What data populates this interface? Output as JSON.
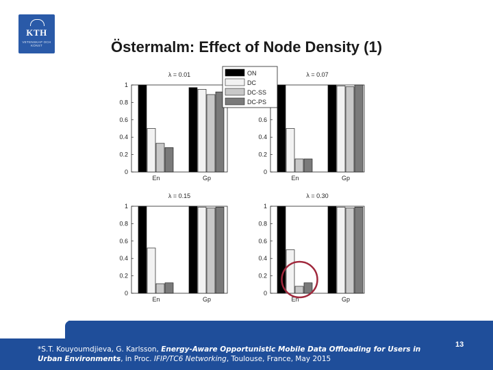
{
  "slide": {
    "title": "Östermalm: Effect of Node Density (1)",
    "logo": {
      "text": "KTH",
      "subtext": "VETENSKAP OCH KONST"
    },
    "page_number": "13",
    "citation": {
      "authors": "*S.T. Kouyoumdjieva, G. Karlsson, ",
      "paper_title": "Energy-Aware Opportunistic Mobile Data Offloading for Users in Urban Environments",
      "venue_prefix": ", in Proc. ",
      "venue": "IFIP/TC6 Networking",
      "venue_suffix": ", Toulouse, France, May 2015"
    },
    "colors": {
      "footer": "#1f4e9a",
      "highlight_circle": "#a0283c"
    }
  },
  "chart_data": {
    "type": "bar",
    "legend": {
      "placement": "top-center",
      "entries": [
        {
          "name": "ON",
          "color": "#000000"
        },
        {
          "name": "DC",
          "color": "#f2f2f2"
        },
        {
          "name": "DC-SS",
          "color": "#c8c8c8"
        },
        {
          "name": "DC-PS",
          "color": "#7a7a7a"
        }
      ]
    },
    "yticks": [
      "0",
      "0.2",
      "0.4",
      "0.6",
      "0.8",
      "1"
    ],
    "ylim": [
      0,
      1
    ],
    "categories": [
      "En",
      "Gp"
    ],
    "panels": [
      {
        "title": "λ = 0.01",
        "series": [
          {
            "name": "ON",
            "values": [
              1.0,
              0.97
            ]
          },
          {
            "name": "DC",
            "values": [
              0.5,
              0.95
            ]
          },
          {
            "name": "DC-SS",
            "values": [
              0.33,
              0.89
            ]
          },
          {
            "name": "DC-PS",
            "values": [
              0.28,
              0.92
            ]
          }
        ]
      },
      {
        "title": "λ = 0.07",
        "series": [
          {
            "name": "ON",
            "values": [
              1.0,
              1.0
            ]
          },
          {
            "name": "DC",
            "values": [
              0.5,
              0.99
            ]
          },
          {
            "name": "DC-SS",
            "values": [
              0.15,
              0.98
            ]
          },
          {
            "name": "DC-PS",
            "values": [
              0.15,
              1.0
            ]
          }
        ]
      },
      {
        "title": "λ = 0.15",
        "series": [
          {
            "name": "ON",
            "values": [
              1.0,
              1.0
            ]
          },
          {
            "name": "DC",
            "values": [
              0.52,
              0.99
            ]
          },
          {
            "name": "DC-SS",
            "values": [
              0.11,
              0.98
            ]
          },
          {
            "name": "DC-PS",
            "values": [
              0.12,
              0.99
            ]
          }
        ]
      },
      {
        "title": "λ = 0.30",
        "series": [
          {
            "name": "ON",
            "values": [
              1.0,
              1.0
            ]
          },
          {
            "name": "DC",
            "values": [
              0.5,
              0.99
            ]
          },
          {
            "name": "DC-SS",
            "values": [
              0.08,
              0.98
            ]
          },
          {
            "name": "DC-PS",
            "values": [
              0.12,
              0.99
            ]
          }
        ]
      }
    ],
    "highlight": {
      "panel": 3,
      "category": "En"
    }
  }
}
